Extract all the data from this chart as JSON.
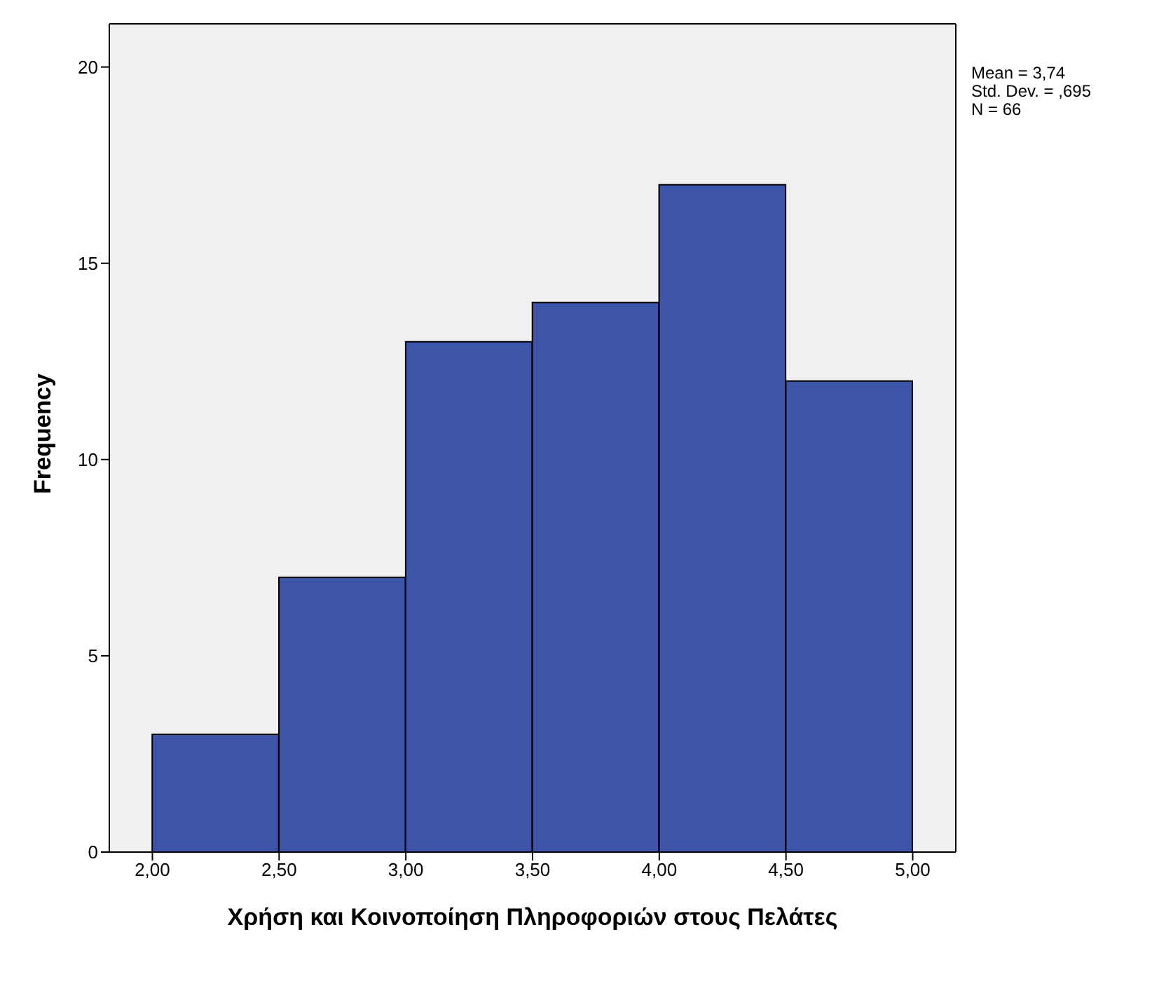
{
  "chart_data": {
    "type": "histogram",
    "xlabel": "Χρήση και Κοινοποίηση Πληροφοριών στους Πελάτες",
    "ylabel": "Frequency",
    "bins": [
      2.0,
      2.5,
      3.0,
      3.5,
      4.0,
      4.5,
      5.0
    ],
    "values": [
      3,
      7,
      13,
      14,
      17,
      12
    ],
    "color": "#3d55a8",
    "xlim": [
      1.83,
      5.17
    ],
    "xticks": [
      {
        "value": 2.0,
        "label": "2,00"
      },
      {
        "value": 2.5,
        "label": "2,50"
      },
      {
        "value": 3.0,
        "label": "3,00"
      },
      {
        "value": 3.5,
        "label": "3,50"
      },
      {
        "value": 4.0,
        "label": "4,00"
      },
      {
        "value": 4.5,
        "label": "4,50"
      },
      {
        "value": 5.0,
        "label": "5,00"
      }
    ],
    "ylim": [
      0,
      21.1
    ],
    "yticks": [
      0,
      5,
      10,
      15,
      20
    ],
    "grid": false,
    "annotations": [
      "Mean = 3,74",
      "Std. Dev. = ,695",
      "N = 66"
    ]
  }
}
